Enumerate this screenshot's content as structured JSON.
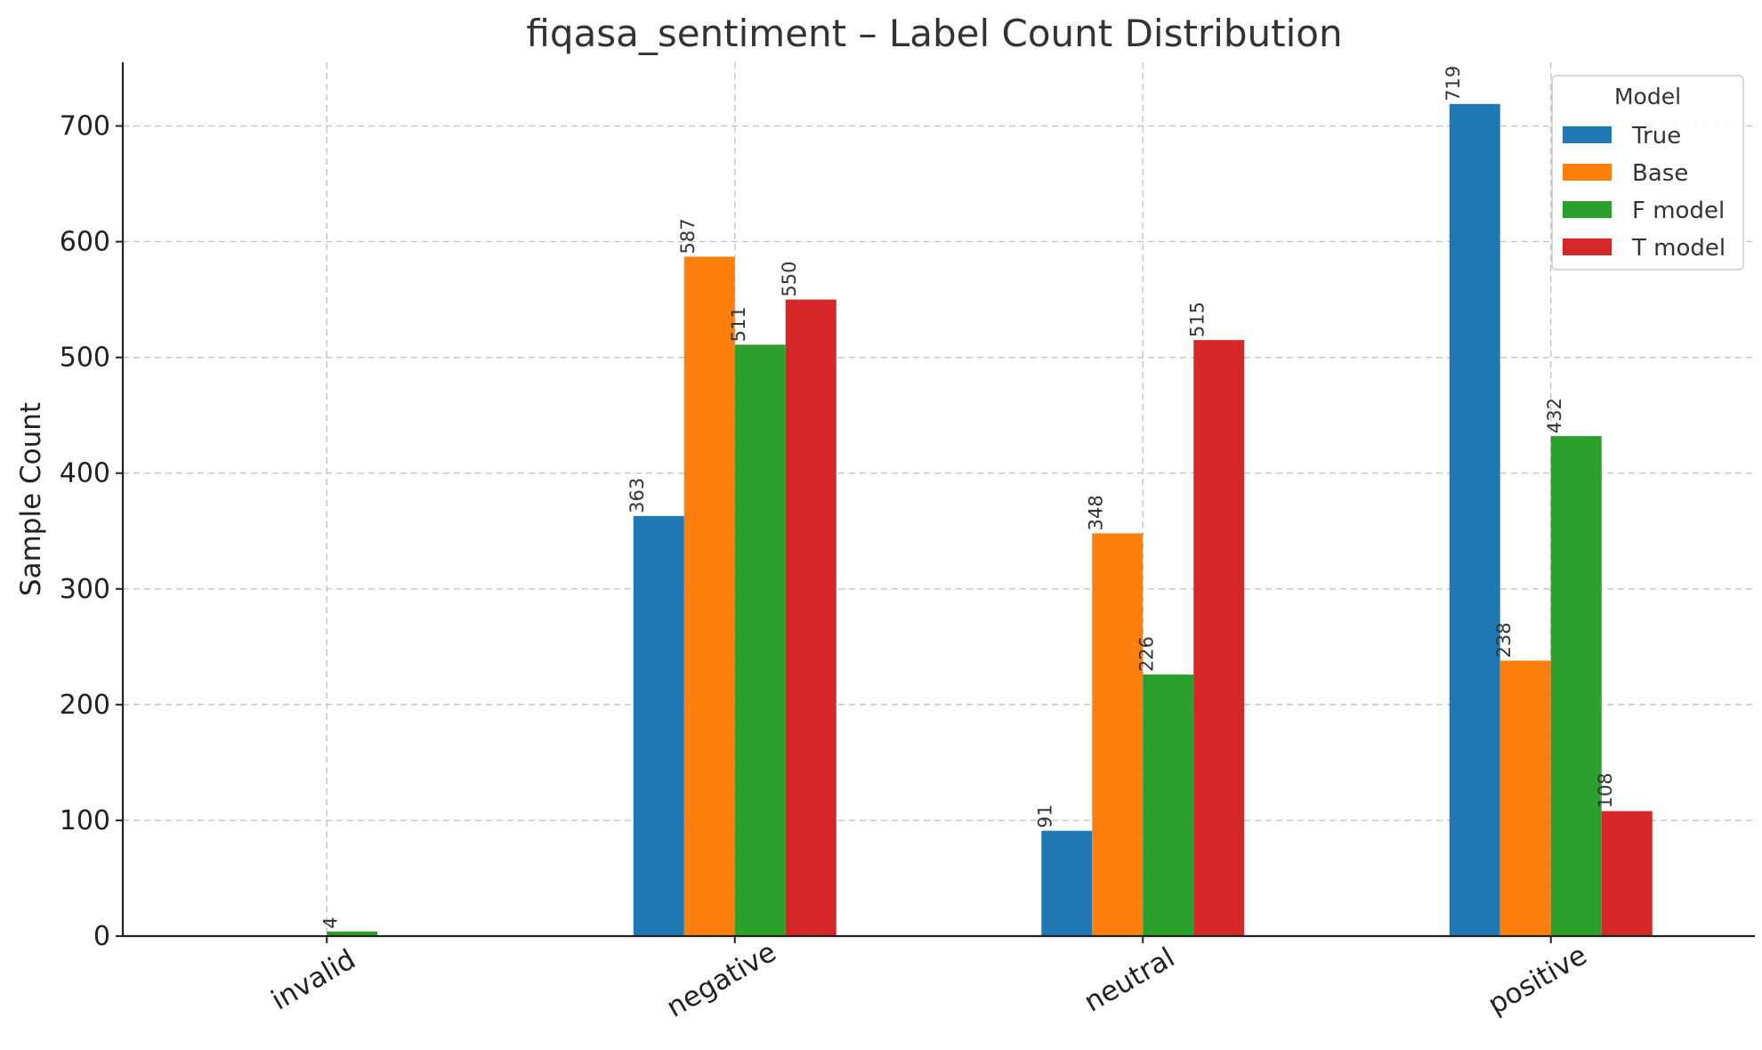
{
  "chart_data": {
    "type": "bar",
    "title": "fiqasa_sentiment – Label Count Distribution",
    "xlabel": "",
    "ylabel": "Sample Count",
    "categories": [
      "invalid",
      "negative",
      "neutral",
      "positive"
    ],
    "series": [
      {
        "name": "True",
        "color": "#1f77b4",
        "values": [
          0,
          363,
          91,
          719
        ]
      },
      {
        "name": "Base",
        "color": "#ff7f0e",
        "values": [
          0,
          587,
          348,
          238
        ]
      },
      {
        "name": "F model",
        "color": "#2ca02c",
        "values": [
          4,
          511,
          226,
          432
        ]
      },
      {
        "name": "T model",
        "color": "#d62728",
        "values": [
          0,
          550,
          515,
          108
        ]
      }
    ],
    "ylim": [
      0,
      755
    ],
    "yticks": [
      0,
      100,
      200,
      300,
      400,
      500,
      600,
      700
    ],
    "grid": true,
    "legend": {
      "title": "Model",
      "position": "top-right"
    }
  }
}
